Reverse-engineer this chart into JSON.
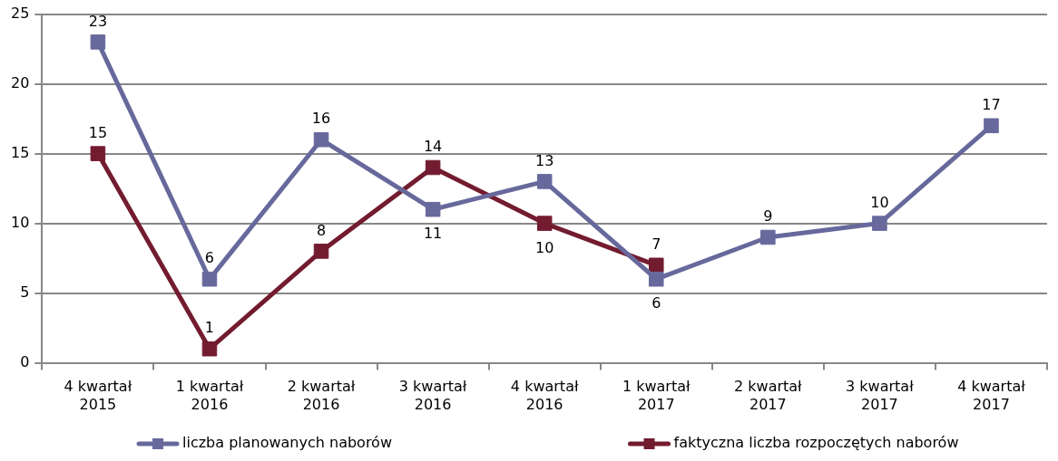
{
  "chart_data": {
    "type": "line",
    "categories": [
      "4 kwartał\n2015",
      "1 kwartał\n2016",
      "2 kwartał\n2016",
      "3 kwartał\n2016",
      "4 kwartał\n2016",
      "1 kwartał\n2017",
      "2 kwartał\n2017",
      "3 kwartał\n2017",
      "4 kwartał\n2017"
    ],
    "series": [
      {
        "name": "liczba planowanych naborów",
        "color": "#67699c",
        "values": [
          23,
          6,
          16,
          11,
          13,
          6,
          9,
          10,
          17
        ]
      },
      {
        "name": "faktyczna liczba rozpoczętych naborów",
        "color": "#731b2f",
        "values": [
          15,
          1,
          8,
          14,
          10,
          7,
          null,
          null,
          null
        ]
      }
    ],
    "ylim": [
      0,
      25
    ],
    "yticks": [
      0,
      5,
      10,
      15,
      20,
      25
    ],
    "grid": "y",
    "legend": "bottom",
    "marker": "square",
    "line_style": "solid",
    "data_labels": true
  }
}
